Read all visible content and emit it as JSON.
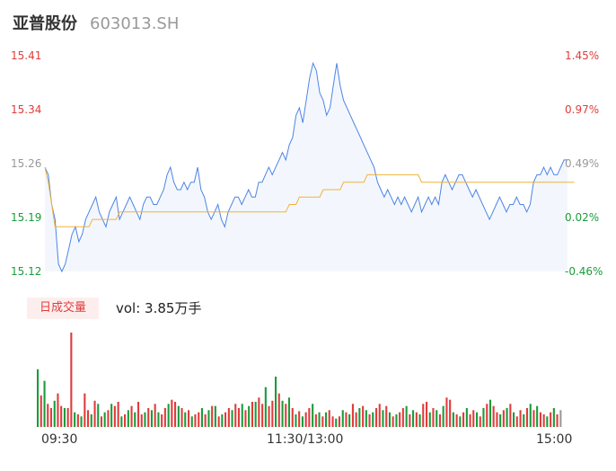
{
  "header": {
    "name": "亚普股份",
    "code": "603013.SH"
  },
  "colors": {
    "up": "#e03c3c",
    "down": "#1a9c3b",
    "flat": "#999999",
    "price_line": "#4d84e6",
    "avg_line": "#f0b23c"
  },
  "volume_panel": {
    "badge": "日成交量",
    "vol_label": "vol: 3.85万手"
  },
  "chart_data": [
    {
      "type": "line",
      "title": "",
      "y_left_ticks": [
        "15.41",
        "15.34",
        "15.26",
        "15.19",
        "15.12"
      ],
      "y_right_ticks": [
        "1.45%",
        "0.97%",
        "0.49%",
        "0.02%",
        "-0.46%"
      ],
      "ylim": [
        15.12,
        15.41
      ],
      "x_ticks": [
        "09:30",
        "11:30/13:00",
        "15:00"
      ],
      "series": [
        {
          "values": [
            15.26,
            15.25,
            15.21,
            15.19,
            15.13,
            15.12,
            15.13,
            15.15,
            15.17,
            15.18,
            15.16,
            15.17,
            15.19,
            15.2,
            15.21,
            15.22,
            15.2,
            15.19,
            15.18,
            15.2,
            15.21,
            15.22,
            15.19,
            15.2,
            15.21,
            15.22,
            15.21,
            15.2,
            15.19,
            15.21,
            15.22,
            15.22,
            15.21,
            15.21,
            15.22,
            15.23,
            15.25,
            15.26,
            15.24,
            15.23,
            15.23,
            15.24,
            15.23,
            15.24,
            15.24,
            15.26,
            15.23,
            15.22,
            15.2,
            15.19,
            15.2,
            15.21,
            15.19,
            15.18,
            15.2,
            15.21,
            15.22,
            15.22,
            15.21,
            15.22,
            15.23,
            15.22,
            15.22,
            15.24,
            15.24,
            15.25,
            15.26,
            15.25,
            15.26,
            15.27,
            15.28,
            15.27,
            15.29,
            15.3,
            15.33,
            15.34,
            15.32,
            15.35,
            15.38,
            15.4,
            15.39,
            15.36,
            15.35,
            15.33,
            15.34,
            15.37,
            15.4,
            15.37,
            15.35,
            15.34,
            15.33,
            15.32,
            15.31,
            15.3,
            15.29,
            15.28,
            15.27,
            15.26,
            15.24,
            15.23,
            15.22,
            15.23,
            15.22,
            15.21,
            15.22,
            15.21,
            15.22,
            15.21,
            15.2,
            15.21,
            15.22,
            15.2,
            15.21,
            15.22,
            15.21,
            15.22,
            15.21,
            15.24,
            15.25,
            15.24,
            15.23,
            15.24,
            15.25,
            15.25,
            15.24,
            15.23,
            15.22,
            15.23,
            15.22,
            15.21,
            15.2,
            15.19,
            15.2,
            15.21,
            15.22,
            15.21,
            15.2,
            15.21,
            15.21,
            15.22,
            15.21,
            15.21,
            15.2,
            15.21,
            15.24,
            15.25,
            15.25,
            15.26,
            15.25,
            15.26,
            15.25,
            15.25,
            15.26,
            15.27,
            15.27
          ]
        },
        {
          "values": [
            15.26,
            15.24,
            15.21,
            15.18,
            15.18,
            15.18,
            15.18,
            15.18,
            15.18,
            15.18,
            15.18,
            15.18,
            15.18,
            15.18,
            15.19,
            15.19,
            15.19,
            15.19,
            15.19,
            15.19,
            15.19,
            15.19,
            15.2,
            15.2,
            15.2,
            15.2,
            15.2,
            15.2,
            15.2,
            15.2,
            15.2,
            15.2,
            15.2,
            15.2,
            15.2,
            15.2,
            15.2,
            15.2,
            15.2,
            15.2,
            15.2,
            15.2,
            15.2,
            15.2,
            15.2,
            15.2,
            15.2,
            15.2,
            15.2,
            15.2,
            15.2,
            15.2,
            15.2,
            15.2,
            15.2,
            15.2,
            15.2,
            15.2,
            15.2,
            15.2,
            15.2,
            15.2,
            15.2,
            15.2,
            15.2,
            15.2,
            15.2,
            15.2,
            15.2,
            15.2,
            15.2,
            15.2,
            15.21,
            15.21,
            15.21,
            15.22,
            15.22,
            15.22,
            15.22,
            15.22,
            15.22,
            15.22,
            15.23,
            15.23,
            15.23,
            15.23,
            15.23,
            15.23,
            15.24,
            15.24,
            15.24,
            15.24,
            15.24,
            15.24,
            15.24,
            15.25,
            15.25,
            15.25,
            15.25,
            15.25,
            15.25,
            15.25,
            15.25,
            15.25,
            15.25,
            15.25,
            15.25,
            15.25,
            15.25,
            15.25,
            15.25,
            15.24,
            15.24,
            15.24,
            15.24,
            15.24,
            15.24,
            15.24,
            15.24,
            15.24,
            15.24,
            15.24,
            15.24,
            15.24,
            15.24,
            15.24,
            15.24,
            15.24,
            15.24,
            15.24,
            15.24,
            15.24,
            15.24,
            15.24,
            15.24,
            15.24,
            15.24,
            15.24,
            15.24,
            15.24,
            15.24,
            15.24,
            15.24,
            15.24,
            15.24,
            15.24,
            15.24,
            15.24,
            15.24,
            15.24,
            15.24,
            15.24,
            15.24,
            15.24,
            15.24,
            15.24,
            15.24
          ]
        }
      ]
    },
    {
      "type": "bar",
      "title": "",
      "values": [
        55,
        30,
        44,
        22,
        18,
        25,
        32,
        20,
        18,
        18,
        90,
        14,
        12,
        10,
        32,
        16,
        12,
        25,
        22,
        10,
        14,
        16,
        22,
        20,
        24,
        10,
        12,
        16,
        20,
        14,
        24,
        12,
        14,
        18,
        16,
        22,
        14,
        12,
        18,
        22,
        26,
        24,
        20,
        18,
        14,
        16,
        10,
        12,
        14,
        18,
        12,
        16,
        20,
        20,
        10,
        12,
        14,
        18,
        16,
        22,
        18,
        22,
        16,
        20,
        24,
        24,
        28,
        22,
        38,
        20,
        25,
        48,
        32,
        25,
        22,
        28,
        18,
        12,
        15,
        10,
        14,
        18,
        22,
        12,
        14,
        10,
        14,
        16,
        10,
        8,
        10,
        16,
        14,
        12,
        22,
        14,
        18,
        20,
        16,
        12,
        14,
        18,
        22,
        16,
        20,
        14,
        10,
        12,
        14,
        18,
        20,
        12,
        16,
        14,
        12,
        22,
        24,
        14,
        18,
        16,
        12,
        20,
        28,
        26,
        14,
        12,
        10,
        14,
        18,
        12,
        16,
        14,
        10,
        18,
        22,
        26,
        20,
        14,
        12,
        16,
        18,
        22,
        14,
        10,
        16,
        12,
        18,
        22,
        16,
        20,
        14,
        12,
        10,
        14,
        18,
        12,
        16
      ],
      "colors": [
        "down",
        "up",
        "down",
        "up",
        "up",
        "down",
        "up",
        "up",
        "down",
        "up",
        "up",
        "down",
        "up",
        "down",
        "up",
        "up",
        "down",
        "up",
        "down",
        "up",
        "down",
        "up",
        "down",
        "up",
        "up",
        "down",
        "up",
        "down",
        "up",
        "down",
        "up",
        "up",
        "down",
        "up",
        "down",
        "up",
        "down",
        "up",
        "up",
        "down",
        "up",
        "up",
        "down",
        "up",
        "down",
        "up",
        "down",
        "up",
        "up",
        "down",
        "up",
        "down",
        "up",
        "down",
        "up",
        "down",
        "up",
        "up",
        "down",
        "up",
        "up",
        "down",
        "up",
        "down",
        "up",
        "down",
        "up",
        "up",
        "down",
        "up",
        "up",
        "down",
        "up",
        "down",
        "up",
        "down",
        "up",
        "down",
        "up",
        "down",
        "up",
        "up",
        "down",
        "up",
        "down",
        "up",
        "down",
        "up",
        "up",
        "down",
        "up",
        "down",
        "up",
        "down",
        "up",
        "up",
        "down",
        "up",
        "down",
        "up",
        "down",
        "up",
        "up",
        "down",
        "up",
        "down",
        "up",
        "down",
        "up",
        "up",
        "down",
        "up",
        "down",
        "up",
        "down",
        "up",
        "up",
        "down",
        "up",
        "down",
        "up",
        "down",
        "up",
        "up",
        "down",
        "up",
        "down",
        "up",
        "down",
        "up",
        "up",
        "down",
        "up",
        "down",
        "up",
        "down",
        "up",
        "up",
        "down",
        "up",
        "down",
        "up",
        "down",
        "up",
        "up",
        "down",
        "up",
        "down",
        "up",
        "down",
        "up",
        "up",
        "down",
        "up",
        "down",
        "up",
        "flat"
      ]
    }
  ]
}
